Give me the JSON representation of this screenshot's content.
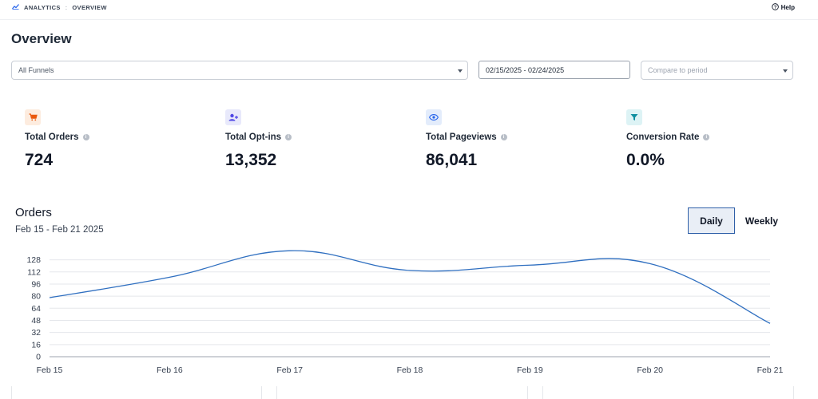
{
  "breadcrumb": {
    "section": "ANALYTICS",
    "separator": ":",
    "page": "OVERVIEW",
    "icon": "chart-icon"
  },
  "header": {
    "help_label": "Help",
    "help_icon": "question-circle-icon"
  },
  "page": {
    "title": "Overview"
  },
  "filters": {
    "funnel_value": "All Funnels",
    "date_range": "02/15/2025 - 02/24/2025",
    "compare_placeholder": "Compare to period"
  },
  "stats": [
    {
      "label": "Total Orders",
      "value": "724",
      "icon": "cart-icon",
      "icon_color": "#ea580c",
      "icon_bg": "#fdecdf"
    },
    {
      "label": "Total Opt-ins",
      "value": "13,352",
      "icon": "user-plus-icon",
      "icon_color": "#4f46e5",
      "icon_bg": "#e8e9fb"
    },
    {
      "label": "Total Pageviews",
      "value": "86,041",
      "icon": "eye-icon",
      "icon_color": "#2563eb",
      "icon_bg": "#e3ecfb"
    },
    {
      "label": "Conversion Rate",
      "value": "0.0%",
      "icon": "funnel-icon",
      "icon_color": "#0e8fa0",
      "icon_bg": "#ddf3f5"
    }
  ],
  "orders": {
    "title": "Orders",
    "range": "Feb 15 - Feb 21 2025",
    "toggle_daily": "Daily",
    "toggle_weekly": "Weekly",
    "selected_toggle": "Daily"
  },
  "chart_data": {
    "type": "line",
    "x": [
      "Feb 15",
      "Feb 16",
      "Feb 17",
      "Feb 18",
      "Feb 19",
      "Feb 20",
      "Feb 21"
    ],
    "series": [
      {
        "values": [
          78,
          105,
          140,
          114,
          121,
          123,
          44
        ],
        "color": "#2f6fc0"
      }
    ],
    "y_ticks": [
      0,
      16,
      32,
      48,
      64,
      80,
      96,
      112,
      128
    ],
    "ylim": [
      0,
      136
    ],
    "grid": true
  }
}
